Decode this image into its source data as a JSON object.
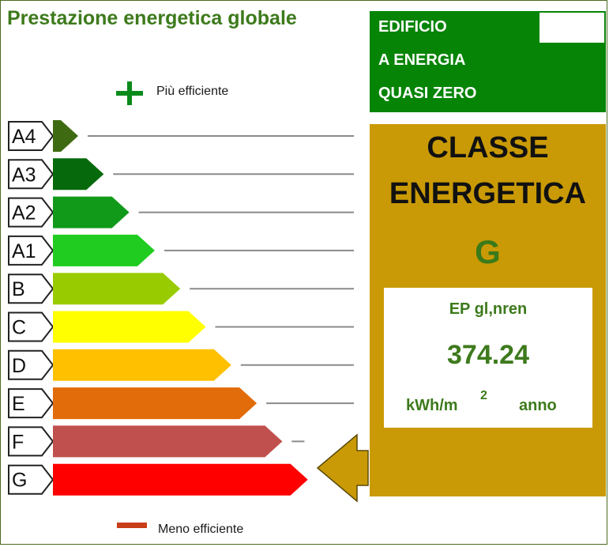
{
  "title": "Prestazione energetica globale",
  "legend": {
    "more_efficient": "Più efficiente",
    "less_efficient": "Meno efficiente",
    "plus_icon": "plus-icon",
    "minus_icon": "minus-bar-icon"
  },
  "nzeb": {
    "line1": "EDIFICIO",
    "line2": "A ENERGIA",
    "line3": "QUASI ZERO",
    "color": "#068406"
  },
  "classification": {
    "heading1": "CLASSE",
    "heading2": "ENERGETICA",
    "class": "G",
    "background": "#c99a05"
  },
  "performance": {
    "label": "EP gl,nren",
    "value": "374.24",
    "unit_main": "kWh/m",
    "unit_exponent": "2",
    "unit_period": "anno"
  },
  "classes": [
    {
      "label": "A4",
      "color": "#3e6b12"
    },
    {
      "label": "A3",
      "color": "#066a0c"
    },
    {
      "label": "A2",
      "color": "#119a1a"
    },
    {
      "label": "A1",
      "color": "#1fcc1f"
    },
    {
      "label": "B",
      "color": "#99cc00"
    },
    {
      "label": "C",
      "color": "#ffff00"
    },
    {
      "label": "D",
      "color": "#ffc000"
    },
    {
      "label": "E",
      "color": "#e26b0a"
    },
    {
      "label": "F",
      "color": "#c0504d"
    },
    {
      "label": "G",
      "color": "#ff0000"
    }
  ],
  "current_class_index": 9
}
